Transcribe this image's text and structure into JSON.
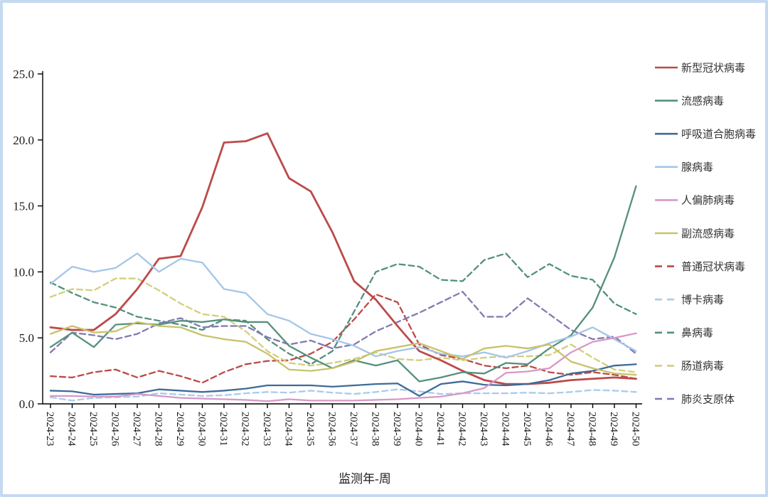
{
  "frame": {
    "border_color": "#C5D9F1",
    "background": "#FFFFFF"
  },
  "chart_data": {
    "type": "line",
    "title": "",
    "xlabel": "监测年-周",
    "ylabel": "",
    "ylim": [
      0,
      25
    ],
    "ytick_step": 5,
    "ytick_labels": [
      "0.0",
      "5.0",
      "10.0",
      "15.0",
      "20.0",
      "25.0"
    ],
    "grid": false,
    "legend_position": "right",
    "x_categories": [
      "2024-23",
      "2024-24",
      "2024-25",
      "2024-26",
      "2024-27",
      "2024-28",
      "2024-29",
      "2024-30",
      "2024-31",
      "2024-32",
      "2024-33",
      "2024-34",
      "2024-35",
      "2024-36",
      "2024-37",
      "2024-38",
      "2024-39",
      "2024-40",
      "2024-41",
      "2024-42",
      "2024-43",
      "2024-44",
      "2024-45",
      "2024-46",
      "2024-47",
      "2024-48",
      "2024-49",
      "2024-50"
    ],
    "series": [
      {
        "name": "新型冠状病毒",
        "color": "#BC4A4A",
        "style": "solid",
        "values": [
          5.8,
          5.6,
          5.6,
          6.8,
          8.7,
          11.0,
          11.2,
          14.9,
          19.8,
          19.9,
          20.5,
          17.1,
          16.1,
          13.0,
          9.3,
          7.9,
          5.9,
          4.0,
          3.3,
          2.5,
          1.8,
          1.5,
          1.5,
          1.6,
          1.8,
          1.9,
          2.0,
          1.9
        ]
      },
      {
        "name": "流感病毒",
        "color": "#55907C",
        "style": "solid",
        "values": [
          4.3,
          5.4,
          4.3,
          6.0,
          6.1,
          6.0,
          6.3,
          6.2,
          6.4,
          6.2,
          6.2,
          4.4,
          3.5,
          2.7,
          3.3,
          2.9,
          3.3,
          1.7,
          2.0,
          2.4,
          2.3,
          3.1,
          3.0,
          4.2,
          5.2,
          7.3,
          11.1,
          16.5
        ]
      },
      {
        "name": "呼吸道合胞病毒",
        "color": "#3E6B99",
        "style": "solid",
        "values": [
          1.0,
          0.95,
          0.7,
          0.75,
          0.8,
          1.1,
          1.0,
          0.9,
          1.0,
          1.15,
          1.4,
          1.4,
          1.4,
          1.3,
          1.4,
          1.5,
          1.55,
          0.6,
          1.5,
          1.7,
          1.45,
          1.4,
          1.5,
          1.8,
          2.3,
          2.5,
          2.9,
          3.0
        ]
      },
      {
        "name": "腺病毒",
        "color": "#A3C6E8",
        "style": "solid",
        "values": [
          9.1,
          10.4,
          10.0,
          10.3,
          11.4,
          10.0,
          11.0,
          10.7,
          8.7,
          8.4,
          6.8,
          6.3,
          5.3,
          4.9,
          4.4,
          3.6,
          4.0,
          4.3,
          3.8,
          3.6,
          3.9,
          3.5,
          4.0,
          4.6,
          5.1,
          5.8,
          4.9,
          4.0
        ]
      },
      {
        "name": "人偏肺病毒",
        "color": "#D898C6",
        "style": "solid",
        "values": [
          0.6,
          0.6,
          0.55,
          0.55,
          0.75,
          0.6,
          0.45,
          0.4,
          0.35,
          0.3,
          0.2,
          0.35,
          0.25,
          0.25,
          0.25,
          0.3,
          0.35,
          0.45,
          0.55,
          0.8,
          1.2,
          2.35,
          2.45,
          2.7,
          3.9,
          4.7,
          5.0,
          5.35
        ]
      },
      {
        "name": "副流感病毒",
        "color": "#C8C26A",
        "style": "solid",
        "values": [
          5.3,
          5.9,
          5.4,
          5.5,
          6.2,
          5.9,
          5.8,
          5.2,
          4.9,
          4.7,
          3.8,
          2.6,
          2.5,
          2.7,
          3.2,
          4.0,
          4.3,
          4.6,
          4.0,
          3.4,
          4.2,
          4.4,
          4.2,
          4.5,
          3.2,
          2.7,
          2.3,
          2.2
        ]
      },
      {
        "name": "普通冠状病毒",
        "color": "#BC4A4A",
        "style": "dashed",
        "values": [
          2.1,
          2.0,
          2.4,
          2.6,
          2.0,
          2.5,
          2.1,
          1.6,
          2.4,
          3.0,
          3.25,
          3.3,
          3.8,
          4.7,
          6.4,
          8.3,
          7.7,
          4.5,
          3.7,
          3.4,
          2.9,
          2.7,
          2.9,
          2.4,
          2.2,
          2.4,
          2.2,
          1.9
        ]
      },
      {
        "name": "博卡病毒",
        "color": "#A9CCEC",
        "style": "dashed",
        "values": [
          0.5,
          0.25,
          0.45,
          0.5,
          0.55,
          0.8,
          0.7,
          0.6,
          0.65,
          0.8,
          0.9,
          0.85,
          1.0,
          0.85,
          0.75,
          0.9,
          1.1,
          0.95,
          0.75,
          0.8,
          0.8,
          0.8,
          0.85,
          0.8,
          0.9,
          1.05,
          1.0,
          0.9
        ]
      },
      {
        "name": "鼻病毒",
        "color": "#55907C",
        "style": "dashed",
        "values": [
          9.2,
          8.4,
          7.7,
          7.3,
          6.6,
          6.3,
          6.0,
          5.6,
          6.4,
          6.3,
          4.9,
          3.8,
          3.0,
          4.0,
          7.0,
          10.0,
          10.6,
          10.4,
          9.4,
          9.3,
          10.9,
          11.4,
          9.6,
          10.6,
          9.7,
          9.4,
          7.6,
          6.8
        ]
      },
      {
        "name": "肠道病毒",
        "color": "#D3CE7E",
        "style": "dashed",
        "values": [
          8.1,
          8.7,
          8.6,
          9.5,
          9.5,
          8.6,
          7.6,
          6.8,
          6.6,
          5.5,
          4.0,
          3.1,
          2.9,
          3.1,
          3.4,
          3.9,
          3.4,
          3.3,
          3.5,
          3.3,
          3.5,
          3.6,
          3.6,
          3.7,
          4.5,
          3.5,
          2.6,
          2.4
        ]
      },
      {
        "name": "肺炎支原体",
        "color": "#8478B2",
        "style": "dashed",
        "values": [
          3.9,
          5.4,
          5.2,
          4.9,
          5.3,
          6.1,
          6.5,
          5.8,
          5.9,
          5.9,
          5.05,
          4.5,
          4.8,
          4.2,
          4.5,
          5.5,
          6.2,
          6.9,
          7.7,
          8.5,
          6.6,
          6.6,
          8.0,
          6.8,
          5.6,
          4.9,
          5.1,
          3.8
        ]
      }
    ]
  }
}
